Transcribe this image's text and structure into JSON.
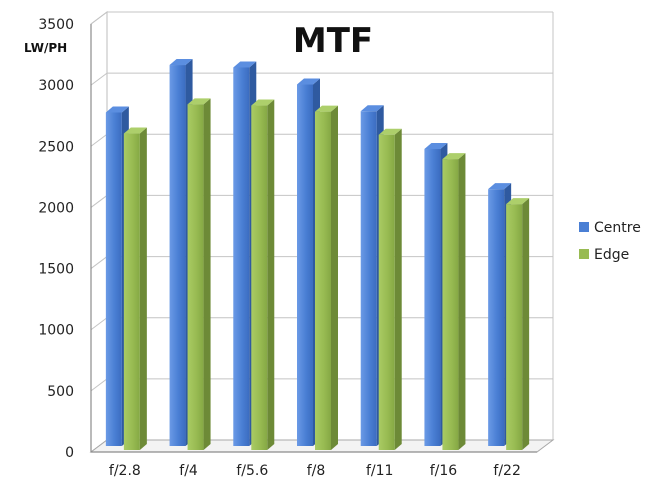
{
  "chart_data": {
    "type": "bar",
    "title": "MTF",
    "ylabel": "LW/PH",
    "xlabel": "",
    "categories": [
      "f/2.8",
      "f/4",
      "f/5.6",
      "f/8",
      "f/11",
      "f/16",
      "f/22"
    ],
    "series": [
      {
        "name": "Centre",
        "values": [
          2740,
          3130,
          3110,
          2970,
          2750,
          2440,
          2110
        ],
        "color": "#4a7fd4"
      },
      {
        "name": "Edge",
        "values": [
          2600,
          2840,
          2830,
          2780,
          2590,
          2390,
          2020
        ],
        "color": "#98bb52"
      }
    ],
    "ylim": [
      0,
      3500
    ],
    "yticks": [
      "0",
      "500",
      "1000",
      "1500",
      "2000",
      "2500",
      "3000",
      "3500"
    ],
    "grid": true,
    "legend": "right",
    "style": "3d-column"
  }
}
